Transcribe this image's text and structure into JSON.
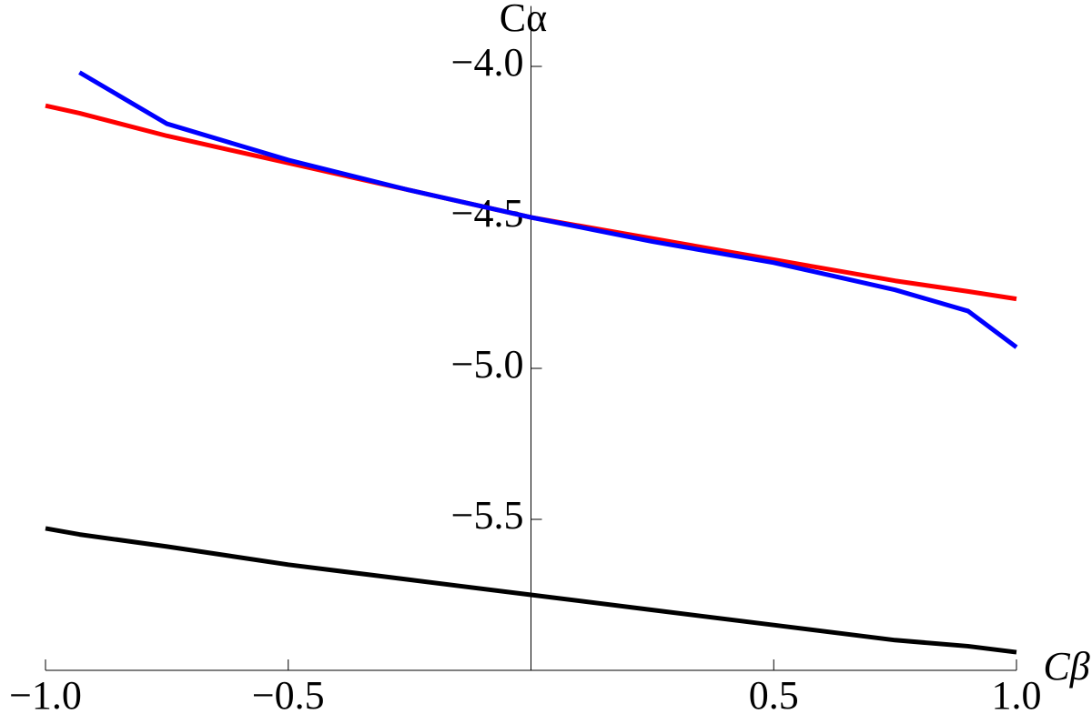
{
  "chart_data": {
    "type": "line",
    "x_label": "Cβ",
    "y_label": "Cα",
    "x": [
      -1,
      -0.93,
      -0.75,
      -0.5,
      -0.25,
      0,
      0.25,
      0.5,
      0.75,
      0.9,
      1
    ],
    "series": [
      {
        "color": "#ff0000",
        "values": [
          -4.13,
          -4.155,
          -4.23,
          -4.32,
          -4.41,
          -4.5,
          -4.57,
          -4.64,
          -4.71,
          -4.745,
          -4.77
        ]
      },
      {
        "color": "#0000ff",
        "values": [
          null,
          -4.02,
          -4.19,
          -4.31,
          -4.41,
          -4.5,
          -4.58,
          -4.65,
          -4.74,
          -4.81,
          -4.93
        ]
      },
      {
        "color": "#000000",
        "values": [
          -5.53,
          -5.55,
          -5.59,
          -5.65,
          -5.7,
          -5.75,
          -5.8,
          -5.85,
          -5.9,
          -5.92,
          -5.94
        ]
      }
    ],
    "xlim": [
      -1,
      1
    ],
    "ylim": [
      -6,
      -3.8
    ],
    "xticks": [
      {
        "value": -1,
        "label": "−1.0"
      },
      {
        "value": -0.5,
        "label": "−0.5"
      },
      0.5,
      {
        "value": 1,
        "label": "1.0"
      }
    ],
    "yticks": [
      {
        "value": -4,
        "label": "−4.0"
      },
      {
        "value": -4.5,
        "label": "−4.5"
      },
      {
        "value": -5,
        "label": "−5.0"
      },
      {
        "value": -5.5,
        "label": "−5.5"
      }
    ],
    "grid": false
  }
}
